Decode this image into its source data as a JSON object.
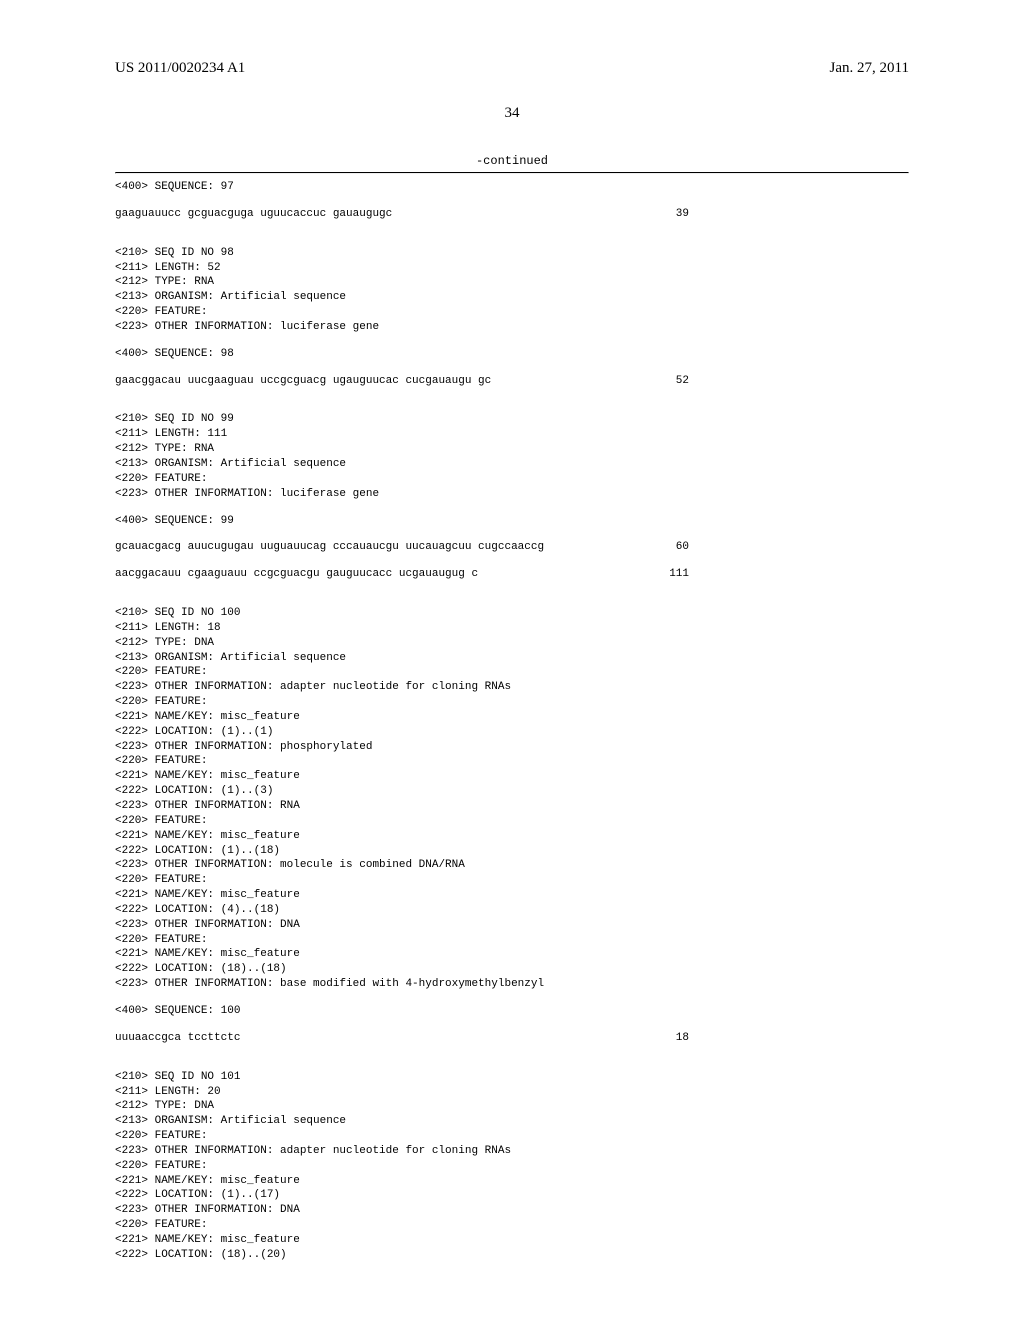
{
  "header": {
    "pub_no": "US 2011/0020234 A1",
    "date": "Jan. 27, 2011"
  },
  "page_number": "34",
  "continued": "-continued",
  "blocks": [
    {
      "type": "line",
      "text": "<400> SEQUENCE: 97"
    },
    {
      "type": "blank"
    },
    {
      "type": "seq",
      "text": "gaaguauucc gcguacguga uguucaccuc gauaugugc",
      "num": "39"
    },
    {
      "type": "blank"
    },
    {
      "type": "blank"
    },
    {
      "type": "line",
      "text": "<210> SEQ ID NO 98"
    },
    {
      "type": "line",
      "text": "<211> LENGTH: 52"
    },
    {
      "type": "line",
      "text": "<212> TYPE: RNA"
    },
    {
      "type": "line",
      "text": "<213> ORGANISM: Artificial sequence"
    },
    {
      "type": "line",
      "text": "<220> FEATURE:"
    },
    {
      "type": "line",
      "text": "<223> OTHER INFORMATION: luciferase gene"
    },
    {
      "type": "blank"
    },
    {
      "type": "line",
      "text": "<400> SEQUENCE: 98"
    },
    {
      "type": "blank"
    },
    {
      "type": "seq",
      "text": "gaacggacau uucgaaguau uccgcguacg ugauguucac cucgauaugu gc",
      "num": "52"
    },
    {
      "type": "blank"
    },
    {
      "type": "blank"
    },
    {
      "type": "line",
      "text": "<210> SEQ ID NO 99"
    },
    {
      "type": "line",
      "text": "<211> LENGTH: 111"
    },
    {
      "type": "line",
      "text": "<212> TYPE: RNA"
    },
    {
      "type": "line",
      "text": "<213> ORGANISM: Artificial sequence"
    },
    {
      "type": "line",
      "text": "<220> FEATURE:"
    },
    {
      "type": "line",
      "text": "<223> OTHER INFORMATION: luciferase gene"
    },
    {
      "type": "blank"
    },
    {
      "type": "line",
      "text": "<400> SEQUENCE: 99"
    },
    {
      "type": "blank"
    },
    {
      "type": "seq",
      "text": "gcauacgacg auucugugau uuguauucag cccauaucgu uucauagcuu cugccaaccg",
      "num": "60"
    },
    {
      "type": "blank"
    },
    {
      "type": "seq",
      "text": "aacggacauu cgaaguauu ccgcguacgu gauguucacc ucgauaugug c",
      "num": "111"
    },
    {
      "type": "blank"
    },
    {
      "type": "blank"
    },
    {
      "type": "line",
      "text": "<210> SEQ ID NO 100"
    },
    {
      "type": "line",
      "text": "<211> LENGTH: 18"
    },
    {
      "type": "line",
      "text": "<212> TYPE: DNA"
    },
    {
      "type": "line",
      "text": "<213> ORGANISM: Artificial sequence"
    },
    {
      "type": "line",
      "text": "<220> FEATURE:"
    },
    {
      "type": "line",
      "text": "<223> OTHER INFORMATION: adapter nucleotide for cloning RNAs"
    },
    {
      "type": "line",
      "text": "<220> FEATURE:"
    },
    {
      "type": "line",
      "text": "<221> NAME/KEY: misc_feature"
    },
    {
      "type": "line",
      "text": "<222> LOCATION: (1)..(1)"
    },
    {
      "type": "line",
      "text": "<223> OTHER INFORMATION: phosphorylated"
    },
    {
      "type": "line",
      "text": "<220> FEATURE:"
    },
    {
      "type": "line",
      "text": "<221> NAME/KEY: misc_feature"
    },
    {
      "type": "line",
      "text": "<222> LOCATION: (1)..(3)"
    },
    {
      "type": "line",
      "text": "<223> OTHER INFORMATION: RNA"
    },
    {
      "type": "line",
      "text": "<220> FEATURE:"
    },
    {
      "type": "line",
      "text": "<221> NAME/KEY: misc_feature"
    },
    {
      "type": "line",
      "text": "<222> LOCATION: (1)..(18)"
    },
    {
      "type": "line",
      "text": "<223> OTHER INFORMATION: molecule is combined DNA/RNA"
    },
    {
      "type": "line",
      "text": "<220> FEATURE:"
    },
    {
      "type": "line",
      "text": "<221> NAME/KEY: misc_feature"
    },
    {
      "type": "line",
      "text": "<222> LOCATION: (4)..(18)"
    },
    {
      "type": "line",
      "text": "<223> OTHER INFORMATION: DNA"
    },
    {
      "type": "line",
      "text": "<220> FEATURE:"
    },
    {
      "type": "line",
      "text": "<221> NAME/KEY: misc_feature"
    },
    {
      "type": "line",
      "text": "<222> LOCATION: (18)..(18)"
    },
    {
      "type": "line",
      "text": "<223> OTHER INFORMATION: base modified with 4-hydroxymethylbenzyl"
    },
    {
      "type": "blank"
    },
    {
      "type": "line",
      "text": "<400> SEQUENCE: 100"
    },
    {
      "type": "blank"
    },
    {
      "type": "seq",
      "text": "uuuaaccgca tccttctc",
      "num": "18"
    },
    {
      "type": "blank"
    },
    {
      "type": "blank"
    },
    {
      "type": "line",
      "text": "<210> SEQ ID NO 101"
    },
    {
      "type": "line",
      "text": "<211> LENGTH: 20"
    },
    {
      "type": "line",
      "text": "<212> TYPE: DNA"
    },
    {
      "type": "line",
      "text": "<213> ORGANISM: Artificial sequence"
    },
    {
      "type": "line",
      "text": "<220> FEATURE:"
    },
    {
      "type": "line",
      "text": "<223> OTHER INFORMATION: adapter nucleotide for cloning RNAs"
    },
    {
      "type": "line",
      "text": "<220> FEATURE:"
    },
    {
      "type": "line",
      "text": "<221> NAME/KEY: misc_feature"
    },
    {
      "type": "line",
      "text": "<222> LOCATION: (1)..(17)"
    },
    {
      "type": "line",
      "text": "<223> OTHER INFORMATION: DNA"
    },
    {
      "type": "line",
      "text": "<220> FEATURE:"
    },
    {
      "type": "line",
      "text": "<221> NAME/KEY: misc_feature"
    },
    {
      "type": "line",
      "text": "<222> LOCATION: (18)..(20)"
    }
  ]
}
